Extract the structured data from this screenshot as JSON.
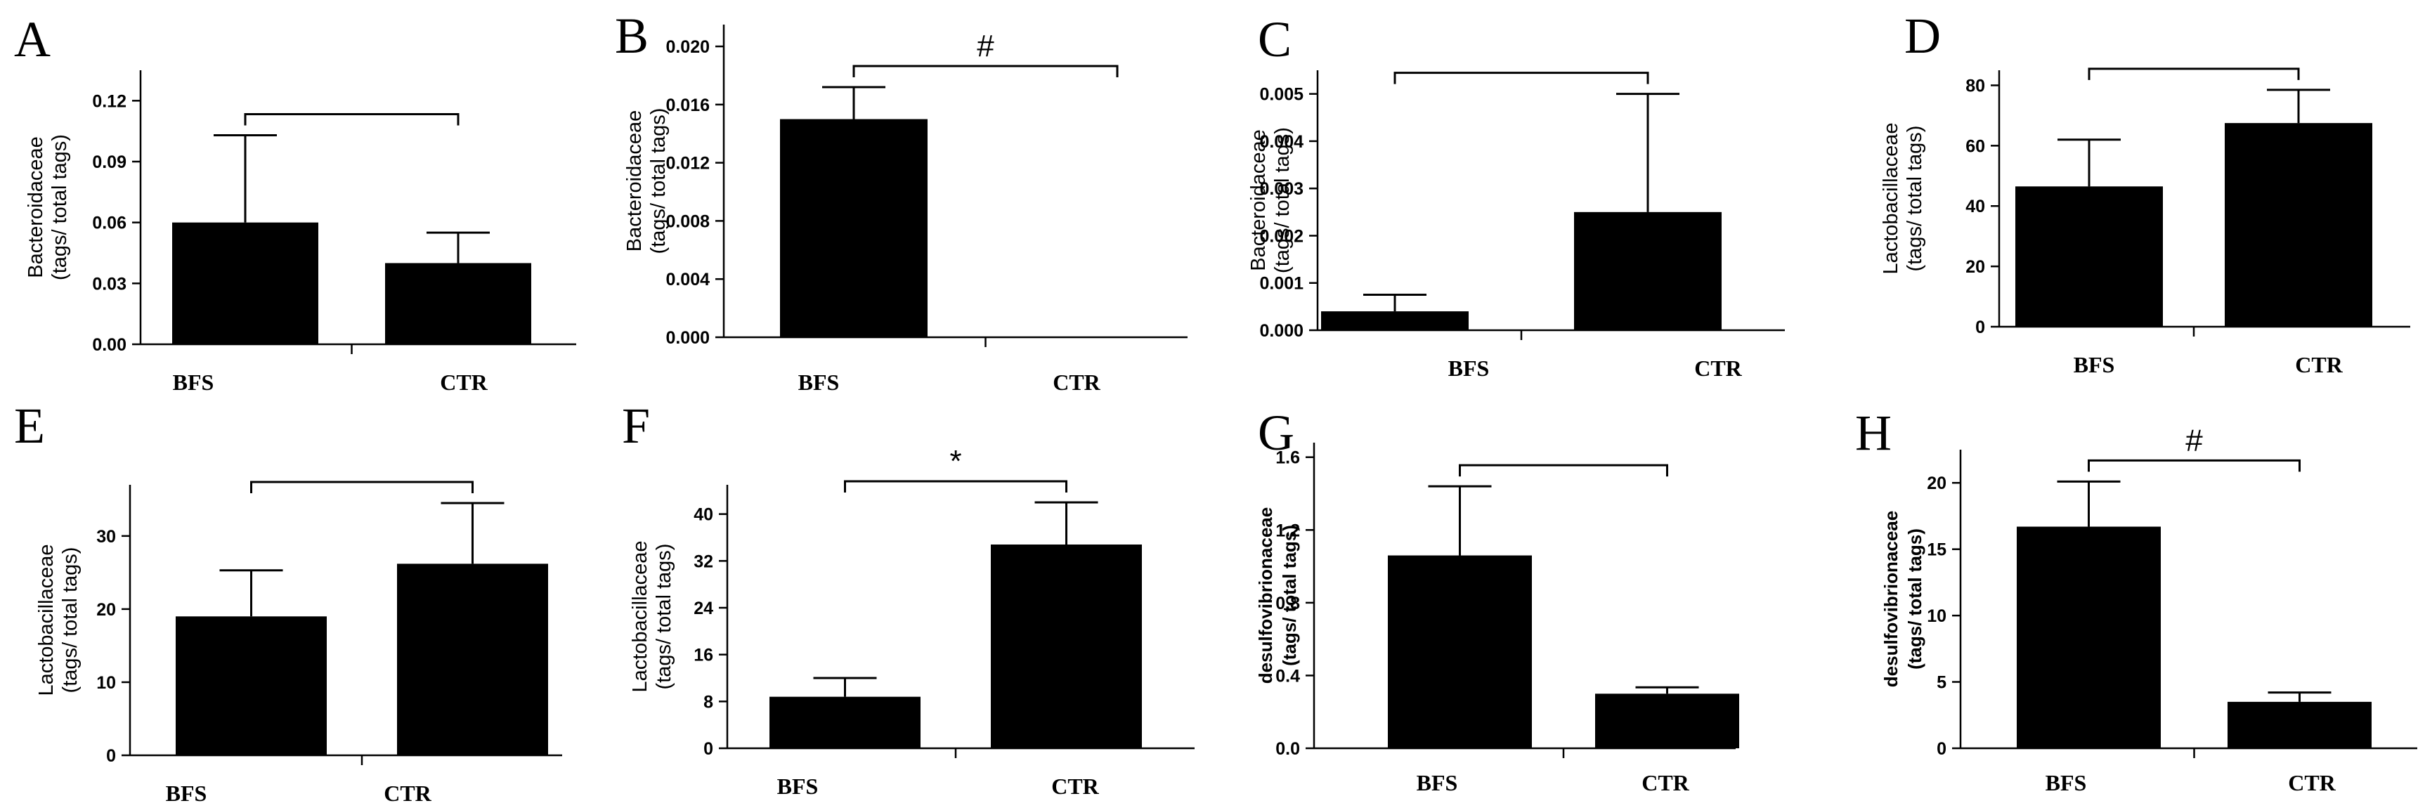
{
  "chart_data": [
    {
      "panel": "A",
      "type": "bar",
      "ylabel_lines": [
        "Bacteroidaceae",
        "(tags/ total tags)"
      ],
      "categories": [
        "BFS",
        "CTR"
      ],
      "values": [
        0.06,
        0.04
      ],
      "errors": [
        0.043,
        0.015
      ],
      "ylim": [
        0,
        0.135
      ],
      "ticks": [
        0.0,
        0.03,
        0.06,
        0.09,
        0.12
      ],
      "tick_labels": [
        "0.00",
        "0.03",
        "0.06",
        "0.09",
        "0.12"
      ],
      "significance": ""
    },
    {
      "panel": "B",
      "type": "bar",
      "ylabel_lines": [
        "Bacteroidaceae",
        "(tags/ total tags)"
      ],
      "categories": [
        "BFS",
        "CTR"
      ],
      "values": [
        0.015,
        0.0
      ],
      "errors": [
        0.0022,
        0.0
      ],
      "ylim": [
        0,
        0.0215
      ],
      "ticks": [
        0.0,
        0.004,
        0.008,
        0.012,
        0.016,
        0.02
      ],
      "tick_labels": [
        "0.000",
        "0.004",
        "0.008",
        "0.012",
        "0.016",
        "0.020"
      ],
      "significance": "#"
    },
    {
      "panel": "C",
      "type": "bar",
      "ylabel_lines": [
        "Bacteroidaceae",
        "(tags/ total tags)"
      ],
      "categories": [
        "BFS",
        "CTR"
      ],
      "values": [
        0.0004,
        0.0025
      ],
      "errors": [
        0.00035,
        0.0025
      ],
      "ylim": [
        0,
        0.0055
      ],
      "ticks": [
        0.0,
        0.001,
        0.002,
        0.003,
        0.004,
        0.005
      ],
      "tick_labels": [
        "0.000",
        "0.001",
        "0.002",
        "0.003",
        "0.004",
        "0.005"
      ],
      "significance": ""
    },
    {
      "panel": "D",
      "type": "bar",
      "ylabel_lines": [
        "Lactobacillaceae",
        "(tags/ total tags)"
      ],
      "categories": [
        "BFS",
        "CTR"
      ],
      "values": [
        46.5,
        67.5
      ],
      "errors": [
        15.5,
        11.0
      ],
      "ylim": [
        0,
        85
      ],
      "ticks": [
        0,
        20,
        40,
        60,
        80
      ],
      "tick_labels": [
        "0",
        "20",
        "40",
        "60",
        "80"
      ],
      "significance": ""
    },
    {
      "panel": "E",
      "type": "bar",
      "ylabel_lines": [
        "Lactobacillaceae",
        "(tags/ total tags)"
      ],
      "categories": [
        "BFS",
        "CTR"
      ],
      "values": [
        19.0,
        26.2
      ],
      "errors": [
        6.3,
        8.3
      ],
      "ylim": [
        0,
        37
      ],
      "ticks": [
        0,
        10,
        20,
        30
      ],
      "tick_labels": [
        "0",
        "10",
        "20",
        "30"
      ],
      "significance": ""
    },
    {
      "panel": "F",
      "type": "bar",
      "ylabel_lines": [
        "Lactobacillaceae",
        "(tags/ total tags)"
      ],
      "categories": [
        "BFS",
        "CTR"
      ],
      "values": [
        8.8,
        34.8
      ],
      "errors": [
        3.2,
        7.2
      ],
      "ylim": [
        0,
        45
      ],
      "ticks": [
        0,
        8,
        16,
        24,
        32,
        40
      ],
      "tick_labels": [
        "0",
        "8",
        "16",
        "24",
        "32",
        "40"
      ],
      "significance": "*"
    },
    {
      "panel": "G",
      "type": "bar",
      "ylabel_lines": [
        "desulfovibrionaceae",
        "(tags/ total tags)"
      ],
      "ylabel_bold": true,
      "categories": [
        "BFS",
        "CTR"
      ],
      "values": [
        1.06,
        0.3
      ],
      "errors": [
        0.38,
        0.035
      ],
      "ylim": [
        0,
        1.68
      ],
      "ticks": [
        0.0,
        0.4,
        0.8,
        1.2,
        1.6
      ],
      "tick_labels": [
        "0.0",
        "0.4",
        "0.8",
        "1.2",
        "1.6"
      ],
      "significance": ""
    },
    {
      "panel": "H",
      "type": "bar",
      "ylabel_lines": [
        "desulfovibrionaceae",
        "(tags/ total tags)"
      ],
      "ylabel_bold": true,
      "categories": [
        "BFS",
        "CTR"
      ],
      "values": [
        16.7,
        3.5
      ],
      "errors": [
        3.4,
        0.7
      ],
      "ylim": [
        0,
        22.5
      ],
      "ticks": [
        0,
        5,
        10,
        15,
        20
      ],
      "tick_labels": [
        "0",
        "5",
        "10",
        "15",
        "20"
      ],
      "significance": "#"
    }
  ]
}
